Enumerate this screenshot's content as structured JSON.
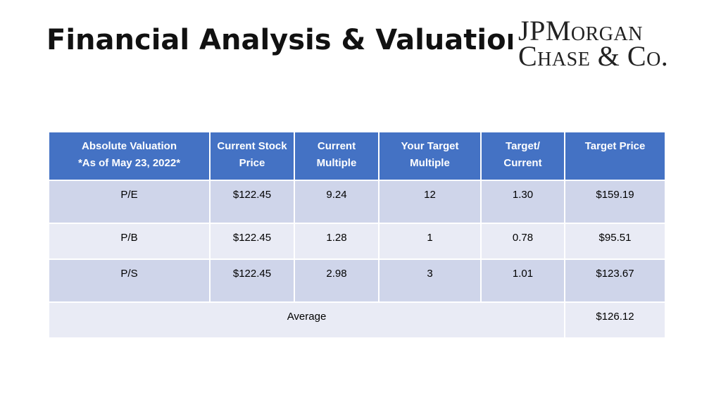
{
  "title": "Financial Analysis & Valuation",
  "logo": {
    "line1": "JPMorgan",
    "line2": "Chase & Co."
  },
  "table": {
    "header": [
      [
        "Absolute Valuation",
        "*As of May 23, 2022*"
      ],
      [
        "Current Stock",
        "Price"
      ],
      [
        "Current",
        "Multiple"
      ],
      [
        "Your Target",
        "Multiple"
      ],
      [
        "Target/",
        "Current"
      ],
      [
        "Target Price"
      ]
    ],
    "rows": [
      [
        "P/E",
        "$122.45",
        "9.24",
        "12",
        "1.30",
        "$159.19"
      ],
      [
        "P/B",
        "$122.45",
        "1.28",
        "1",
        "0.78",
        "$95.51"
      ],
      [
        "P/S",
        "$122.45",
        "2.98",
        "3",
        "1.01",
        "$123.67"
      ]
    ],
    "average": {
      "label": "Average",
      "value": "$126.12"
    }
  }
}
